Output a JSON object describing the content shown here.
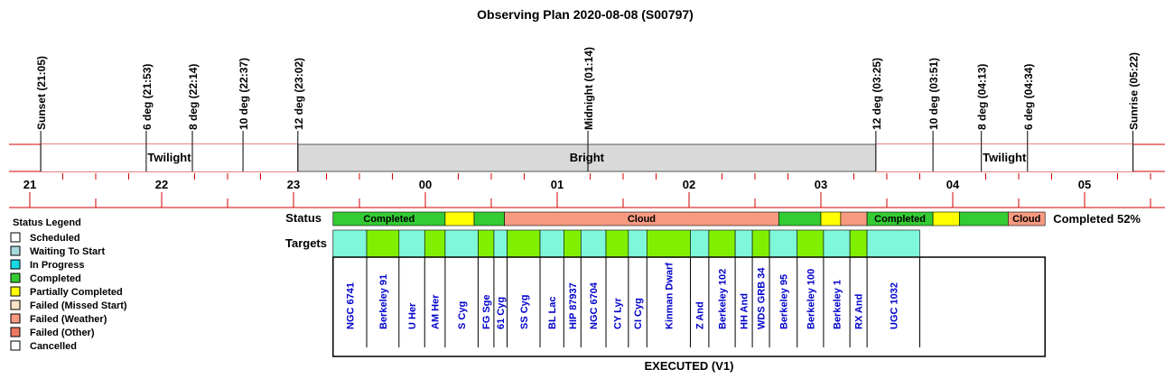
{
  "title": "Observing Plan 2020-08-08 (S00797)",
  "chart_data": {
    "type": "timeline",
    "time_axis": {
      "hour_range": [
        20.95,
        29.5
      ],
      "hour_labels": [
        "21",
        "22",
        "23",
        "00",
        "01",
        "02",
        "03",
        "04",
        "05"
      ]
    },
    "events": [
      {
        "label": "Sunset (21:05)",
        "hour": 21.083
      },
      {
        "label": "6 deg (21:53)",
        "hour": 21.883
      },
      {
        "label": "8 deg (22:14)",
        "hour": 22.233
      },
      {
        "label": "10 deg (22:37)",
        "hour": 22.617
      },
      {
        "label": "12 deg (23:02)",
        "hour": 23.033
      },
      {
        "label": "Midnight (01:14)",
        "hour": 25.233
      },
      {
        "label": "12 deg (03:25)",
        "hour": 27.417
      },
      {
        "label": "10 deg (03:51)",
        "hour": 27.85
      },
      {
        "label": "8 deg (04:13)",
        "hour": 28.217
      },
      {
        "label": "6 deg (04:34)",
        "hour": 28.567
      },
      {
        "label": "Sunrise (05:22)",
        "hour": 29.367
      }
    ],
    "sky_bands": [
      {
        "label": "Twilight",
        "start": 21.083,
        "end": 23.033,
        "color": "#ffffff"
      },
      {
        "label": "Bright",
        "start": 23.033,
        "end": 27.417,
        "color": "#d9d9d9"
      },
      {
        "label": "Twilight",
        "start": 27.417,
        "end": 29.367,
        "color": "#ffffff"
      }
    ],
    "status_row_label": "Status",
    "targets_row_label": "Targets",
    "completion_label": "Completed 52%",
    "footer_label": "EXECUTED (V1)",
    "status_segments": [
      {
        "status": "Completed",
        "label": "Completed",
        "start": 23.3,
        "end": 24.15
      },
      {
        "status": "Partially Completed",
        "label": "",
        "start": 24.15,
        "end": 24.37
      },
      {
        "status": "Completed",
        "label": "",
        "start": 24.37,
        "end": 24.6
      },
      {
        "status": "Failed (Weather)",
        "label": "Cloud",
        "start": 24.6,
        "end": 26.68
      },
      {
        "status": "Completed",
        "label": "",
        "start": 26.68,
        "end": 27.0
      },
      {
        "status": "Partially Completed",
        "label": "",
        "start": 27.0,
        "end": 27.15
      },
      {
        "status": "Failed (Weather)",
        "label": "",
        "start": 27.15,
        "end": 27.35
      },
      {
        "status": "Completed",
        "label": "Completed",
        "start": 27.35,
        "end": 27.85
      },
      {
        "status": "Partially Completed",
        "label": "",
        "start": 27.85,
        "end": 28.05
      },
      {
        "status": "Completed",
        "label": "",
        "start": 28.05,
        "end": 28.42
      },
      {
        "status": "Failed (Weather)",
        "label": "Cloud",
        "start": 28.42,
        "end": 28.7
      }
    ],
    "targets": [
      {
        "name": "NGC 6741",
        "status": "Waiting To Start",
        "start": 23.3,
        "end": 23.555
      },
      {
        "name": "Berkeley 91",
        "status": "Completed",
        "start": 23.555,
        "end": 23.8
      },
      {
        "name": "U Her",
        "status": "Waiting To Start",
        "start": 23.8,
        "end": 23.995
      },
      {
        "name": "AM Her",
        "status": "Completed",
        "start": 23.995,
        "end": 24.15
      },
      {
        "name": "S Cyg",
        "status": "Waiting To Start",
        "start": 24.15,
        "end": 24.4
      },
      {
        "name": "FG Sge",
        "status": "Completed",
        "start": 24.4,
        "end": 24.52
      },
      {
        "name": "61 Cyg",
        "status": "Waiting To Start",
        "start": 24.52,
        "end": 24.62
      },
      {
        "name": "SS Cyg",
        "status": "Completed",
        "start": 24.62,
        "end": 24.87
      },
      {
        "name": "BL Lac",
        "status": "Waiting To Start",
        "start": 24.87,
        "end": 25.05
      },
      {
        "name": "HIP 87937",
        "status": "Completed",
        "start": 25.05,
        "end": 25.18
      },
      {
        "name": "NGC 6704",
        "status": "Waiting To Start",
        "start": 25.18,
        "end": 25.37
      },
      {
        "name": "CY Lyr",
        "status": "Completed",
        "start": 25.37,
        "end": 25.54
      },
      {
        "name": "CI Cyg",
        "status": "Waiting To Start",
        "start": 25.54,
        "end": 25.68
      },
      {
        "name": "Kinman Dwarf",
        "status": "Completed",
        "start": 25.68,
        "end": 26.01
      },
      {
        "name": "Z And",
        "status": "Waiting To Start",
        "start": 26.01,
        "end": 26.15
      },
      {
        "name": "Berkeley 102",
        "status": "Completed",
        "start": 26.15,
        "end": 26.35
      },
      {
        "name": "HH And",
        "status": "Waiting To Start",
        "start": 26.35,
        "end": 26.48
      },
      {
        "name": "WDS GRB 34",
        "status": "Completed",
        "start": 26.48,
        "end": 26.61
      },
      {
        "name": "Berkeley 95",
        "status": "Waiting To Start",
        "start": 26.61,
        "end": 26.82
      },
      {
        "name": "Berkeley 100",
        "status": "Completed",
        "start": 26.82,
        "end": 27.02
      },
      {
        "name": "Berkeley 1",
        "status": "Waiting To Start",
        "start": 27.02,
        "end": 27.22
      },
      {
        "name": "RX And",
        "status": "Completed",
        "start": 27.22,
        "end": 27.35
      },
      {
        "name": "UGC 1032",
        "status": "Waiting To Start",
        "start": 27.35,
        "end": 27.75
      }
    ]
  },
  "legend": {
    "title": "Status Legend",
    "items": [
      {
        "label": "Scheduled",
        "color": "#ffffff"
      },
      {
        "label": "Waiting To Start",
        "color": "#a6d8e0"
      },
      {
        "label": "In Progress",
        "color": "#17d9e6"
      },
      {
        "label": "Completed",
        "color": "#33cc33"
      },
      {
        "label": "Partially Completed",
        "color": "#ffff00"
      },
      {
        "label": "Failed (Missed Start)",
        "color": "#fde3c8"
      },
      {
        "label": "Failed (Weather)",
        "color": "#f79a80"
      },
      {
        "label": "Failed (Other)",
        "color": "#ee7763"
      },
      {
        "label": "Cancelled",
        "color": "#ffffff"
      }
    ]
  },
  "colors": {
    "Completed": "#33cc33",
    "Partially Completed": "#ffff00",
    "Failed (Weather)": "#f79a80",
    "Waiting To Start": "#7ff7d9",
    "Completed Target": "#80f000",
    "red_line": "#d40000",
    "bright_band": "#d9d9d9",
    "target_text": "#0000cc"
  }
}
